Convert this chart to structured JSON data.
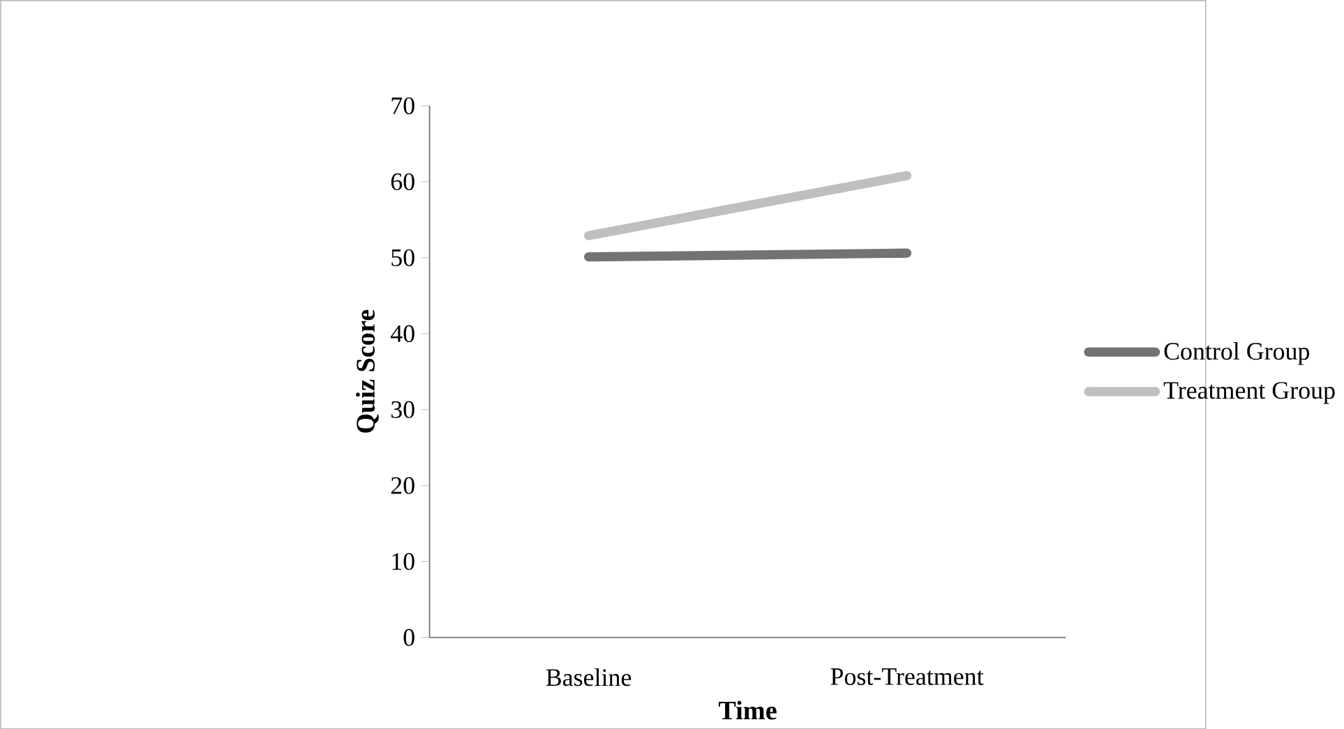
{
  "chart_data": {
    "type": "line",
    "xlabel": "Time",
    "ylabel": "Quiz Score",
    "categories": [
      "Baseline",
      "Post-Treatment"
    ],
    "series": [
      {
        "name": "Control Group",
        "color": "#737373",
        "values": [
          50.1,
          50.6
        ]
      },
      {
        "name": "Treatment Group",
        "color": "#bfbfbf",
        "values": [
          52.9,
          60.8
        ]
      }
    ],
    "ylim": [
      0,
      70
    ],
    "yticks": [
      0,
      10,
      20,
      30,
      40,
      50,
      60,
      70
    ],
    "grid": false,
    "legend": "right",
    "marker": "none",
    "line_style": "solid"
  }
}
